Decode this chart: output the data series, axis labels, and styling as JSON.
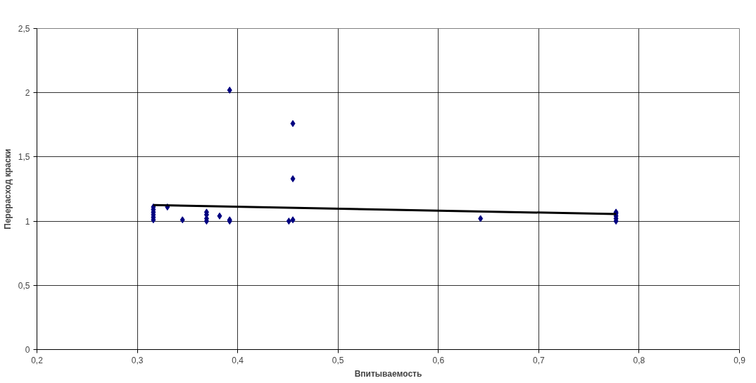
{
  "chart_data": {
    "type": "scatter",
    "xlabel": "Впитываемость",
    "ylabel": "Перерасход краски",
    "xlim": [
      0.2,
      0.9
    ],
    "xticks": [
      {
        "value": 0.2,
        "label": "0,2"
      },
      {
        "value": 0.3,
        "label": "0,3"
      },
      {
        "value": 0.4,
        "label": "0,4"
      },
      {
        "value": 0.5,
        "label": "0,5"
      },
      {
        "value": 0.6,
        "label": "0,6"
      },
      {
        "value": 0.7,
        "label": "0,7"
      },
      {
        "value": 0.8,
        "label": "0,8"
      },
      {
        "value": 0.9,
        "label": "0,9"
      }
    ],
    "ylim": [
      0,
      2.5
    ],
    "yticks": [
      0,
      {
        "value": 0.5,
        "label": "0,5"
      },
      1,
      {
        "value": 1.5,
        "label": "1,5"
      },
      2,
      {
        "value": 2.5,
        "label": "2,5"
      }
    ],
    "grid": true,
    "series": [
      {
        "marker": "diamond",
        "color": "#000080",
        "x": [
          0.316,
          0.316,
          0.316,
          0.316,
          0.316,
          0.316,
          0.33,
          0.345,
          0.369,
          0.369,
          0.369,
          0.369,
          0.382,
          0.392,
          0.392,
          0.392,
          0.451,
          0.455,
          0.455,
          0.455,
          0.642,
          0.777,
          0.777,
          0.777,
          0.777,
          0.777
        ],
        "values": [
          1.01,
          1.03,
          1.05,
          1.07,
          1.09,
          1.11,
          1.11,
          1.01,
          1.0,
          1.02,
          1.05,
          1.07,
          1.04,
          1.0,
          1.01,
          2.02,
          1.0,
          1.01,
          1.76,
          1.33,
          1.02,
          1.0,
          1.02,
          1.04,
          1.06,
          1.07
        ]
      },
      {
        "type": "line",
        "color": "#000000",
        "x": [
          0.316,
          0.777
        ],
        "values": [
          1.125,
          1.055
        ]
      }
    ]
  }
}
